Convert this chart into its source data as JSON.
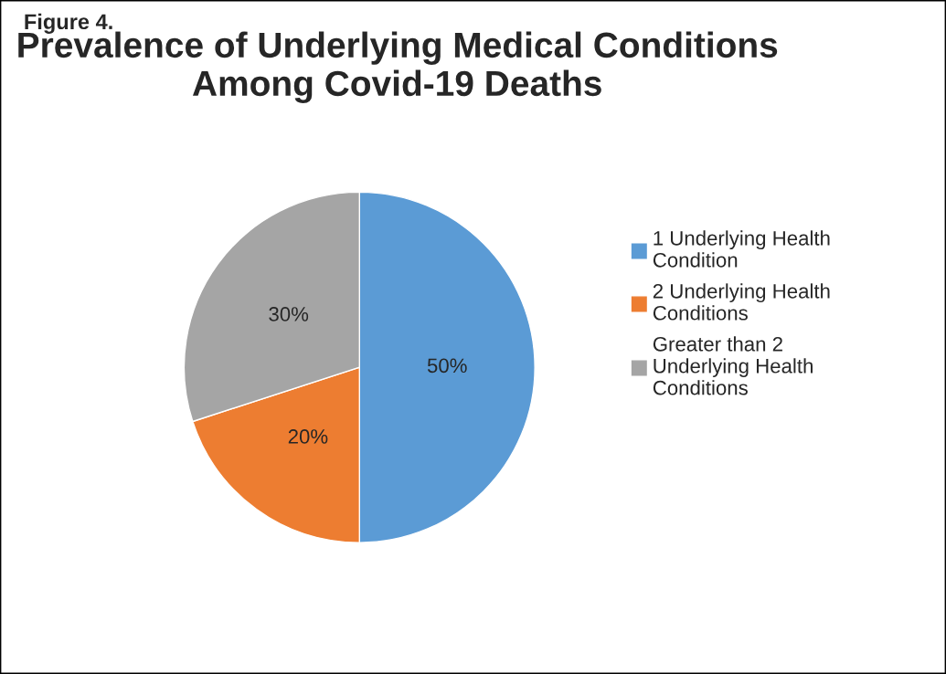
{
  "chart_data": {
    "type": "pie",
    "title": "Prevalence of Underlying Medical Conditions Among Covid-19 Deaths",
    "annotations": [
      "Figure 4."
    ],
    "categories": [
      "1 Underlying Health Condition",
      "2 Underlying Health Conditions",
      "Greater than 2 Underlying Health Conditions"
    ],
    "values": [
      50,
      20,
      30
    ],
    "value_labels": [
      "50%",
      "20%",
      "30%"
    ],
    "colors": [
      "#5b9bd5",
      "#ed7d31",
      "#a5a5a5"
    ],
    "legend": "right"
  }
}
